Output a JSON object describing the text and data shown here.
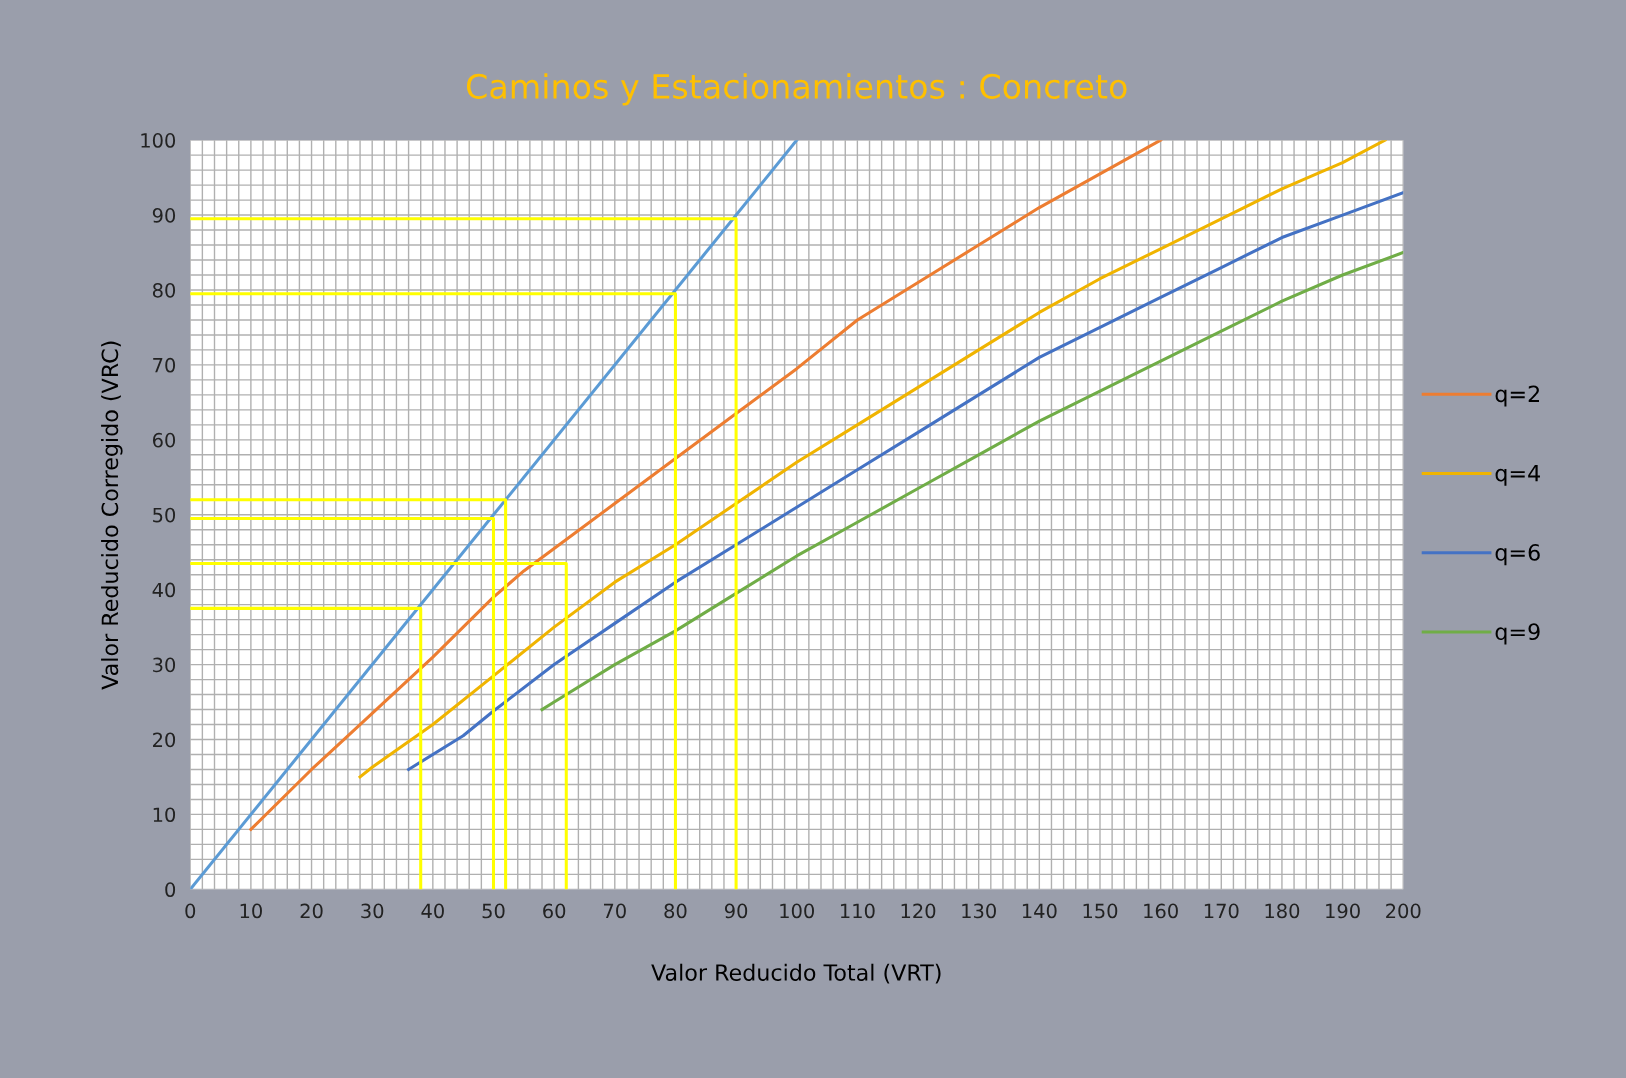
{
  "chart_data": {
    "type": "line",
    "title": "Caminos y Estacionamientos : Concreto",
    "xlabel": "Valor Reducido Total (VRT)",
    "ylabel": "Valor Reducido Corregido (VRC)",
    "xlim": [
      0,
      200
    ],
    "ylim": [
      0,
      100
    ],
    "xticks": [
      0,
      10,
      20,
      30,
      40,
      50,
      60,
      70,
      80,
      90,
      100,
      110,
      120,
      130,
      140,
      150,
      160,
      170,
      180,
      190,
      200
    ],
    "yticks": [
      0,
      10,
      20,
      30,
      40,
      50,
      60,
      70,
      80,
      90,
      100
    ],
    "grid": true,
    "legend": "right",
    "marker": "none",
    "series": [
      {
        "color": "#5b9bd5",
        "x": [
          0,
          100
        ],
        "values": [
          0,
          100
        ]
      },
      {
        "name": "q=2",
        "color": "#ed7d31",
        "x": [
          10,
          20,
          30,
          40,
          50,
          55,
          60,
          70,
          80,
          90,
          100,
          110,
          120,
          130,
          140,
          150,
          160
        ],
        "values": [
          8,
          16,
          23.5,
          31,
          39,
          42.5,
          45.5,
          51.5,
          57.5,
          63.5,
          69.5,
          76,
          81,
          86,
          91,
          95.5,
          100
        ]
      },
      {
        "name": "q=4",
        "color": "#f0b400",
        "x": [
          28,
          30,
          40,
          50,
          60,
          70,
          80,
          90,
          100,
          110,
          120,
          130,
          140,
          150,
          160,
          170,
          180,
          190,
          197
        ],
        "values": [
          15,
          16.3,
          22,
          28.5,
          35,
          41,
          46,
          51.5,
          57,
          62,
          67,
          72,
          77,
          81.5,
          85.5,
          89.5,
          93.5,
          97,
          100
        ]
      },
      {
        "name": "q=6",
        "color": "#4472c4",
        "x": [
          36,
          45,
          50,
          60,
          70,
          80,
          90,
          100,
          110,
          120,
          130,
          140,
          150,
          160,
          170,
          180,
          190,
          200
        ],
        "values": [
          16,
          20.5,
          23.8,
          30,
          35.5,
          41,
          46,
          51,
          56,
          61,
          66,
          71,
          75,
          79,
          83,
          87,
          90,
          93
        ]
      },
      {
        "name": "q=9",
        "color": "#70ad47",
        "x": [
          58,
          60,
          70,
          80,
          90,
          100,
          110,
          120,
          130,
          140,
          150,
          160,
          170,
          180,
          190,
          200
        ],
        "values": [
          24,
          25,
          30,
          34.5,
          39.5,
          44.5,
          49,
          53.5,
          58,
          62.5,
          66.5,
          70.5,
          74.5,
          78.5,
          82,
          85
        ]
      },
      {
        "color": "#ffff00",
        "x": [
          0,
          38,
          38
        ],
        "values": [
          37.5,
          37.5,
          0
        ]
      },
      {
        "color": "#ffff00",
        "x": [
          0,
          50,
          50
        ],
        "values": [
          49.5,
          49.5,
          0
        ]
      },
      {
        "color": "#ffff00",
        "x": [
          0,
          52,
          52
        ],
        "values": [
          52,
          52,
          0
        ]
      },
      {
        "color": "#ffff00",
        "x": [
          0,
          62,
          62
        ],
        "values": [
          43.5,
          43.5,
          0
        ]
      },
      {
        "color": "#ffff00",
        "x": [
          0,
          80,
          80
        ],
        "values": [
          79.5,
          79.5,
          0
        ]
      },
      {
        "color": "#ffff00",
        "x": [
          0,
          90,
          90
        ],
        "values": [
          89.5,
          89.5,
          0
        ]
      }
    ]
  }
}
